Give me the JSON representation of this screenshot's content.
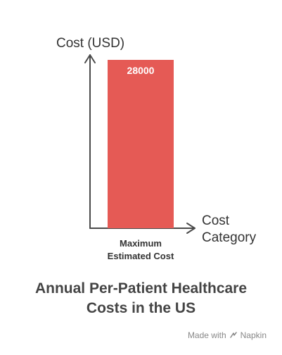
{
  "chart_data": {
    "type": "bar",
    "categories": [
      "Maximum Estimated Cost"
    ],
    "category_lines": [
      [
        "Maximum",
        "Estimated Cost"
      ]
    ],
    "values": [
      28000
    ],
    "data_labels": [
      "28000"
    ],
    "title": "Annual Per-Patient Healthcare Costs in the US",
    "title_lines": [
      "Annual Per-Patient Healthcare",
      "Costs in the US"
    ],
    "ylabel": "Cost (USD)",
    "xlabel": "Cost Category",
    "xlabel_lines": [
      "Cost",
      "Category"
    ],
    "ylim": [
      0,
      28000
    ],
    "grid": false,
    "legend": "none",
    "bar_color": "#E55A55",
    "axis_color": "#4A4A4A"
  },
  "watermark": {
    "text": "Made with",
    "brand": "Napkin",
    "icon": "napkin-logo-icon"
  }
}
